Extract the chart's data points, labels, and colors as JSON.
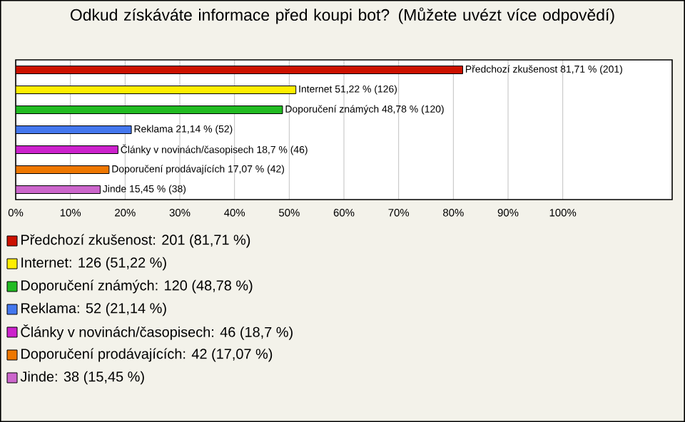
{
  "chart_data": {
    "type": "bar",
    "orientation": "horizontal",
    "title": "Odkud získáváte informace před koupi bot? (Můžete uvézt více odpovědí)",
    "categories": [
      null,
      null,
      null,
      null,
      null,
      null,
      null
    ],
    "values": [
      81.71,
      51.22,
      48.78,
      21.14,
      18.7,
      17.07,
      15.45
    ],
    "colors": [
      "#cc1100",
      "#ffee00",
      "#22bb22",
      "#4477ee",
      "#cc22cc",
      "#ee7700",
      "#cc66cc"
    ],
    "value_labels": [
      "Předchozí zkušenost 81,71 % (201)",
      "Internet 51,22 % (126)",
      "Doporučení známých 48,78 % (120)",
      "Reklama 21,14 % (52)",
      "Články v novinách/časopisech 18,7 % (46)",
      "Doporučení prodávajících 17,07 % (42)",
      "Jinde 15,45 % (38)"
    ],
    "xlim": [
      0,
      120
    ],
    "xticks": [
      {
        "value": 0,
        "label": "0%"
      },
      {
        "value": 10,
        "label": "10%"
      },
      {
        "value": 20,
        "label": "20%"
      },
      {
        "value": 30,
        "label": "30%"
      },
      {
        "value": 40,
        "label": "40%"
      },
      {
        "value": 50,
        "label": "50%"
      },
      {
        "value": 60,
        "label": "60%"
      },
      {
        "value": 70,
        "label": "70%"
      },
      {
        "value": 80,
        "label": "80%"
      },
      {
        "value": 90,
        "label": "90%"
      },
      {
        "value": 100,
        "label": "100%"
      }
    ],
    "grid": "x",
    "annotations": [
      "Předchozí zkušenost: 201 (81,71 %)",
      "Internet: 126 (51,22 %)",
      "Doporučení známých: 120 (48,78 %)",
      "Reklama: 52 (21,14 %)",
      "Články v novinách/časopisech: 46 (18,7 %)",
      "Doporučení prodávajících: 42 (17,07 %)",
      "Jinde: 38 (15,45 %)"
    ]
  }
}
